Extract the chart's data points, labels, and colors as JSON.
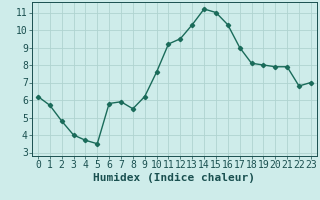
{
  "x": [
    0,
    1,
    2,
    3,
    4,
    5,
    6,
    7,
    8,
    9,
    10,
    11,
    12,
    13,
    14,
    15,
    16,
    17,
    18,
    19,
    20,
    21,
    22,
    23
  ],
  "y": [
    6.2,
    5.7,
    4.8,
    4.0,
    3.7,
    3.5,
    5.8,
    5.9,
    5.5,
    6.2,
    7.6,
    9.2,
    9.5,
    10.3,
    11.2,
    11.0,
    10.3,
    9.0,
    8.1,
    8.0,
    7.9,
    7.9,
    6.8,
    7.0
  ],
  "line_color": "#1a6b5a",
  "marker": "D",
  "marker_size": 2.2,
  "bg_color": "#ceecea",
  "grid_color": "#b0d4d0",
  "tick_color": "#1a5050",
  "xlabel": "Humidex (Indice chaleur)",
  "xlim": [
    -0.5,
    23.5
  ],
  "ylim": [
    2.8,
    11.6
  ],
  "yticks": [
    3,
    4,
    5,
    6,
    7,
    8,
    9,
    10,
    11
  ],
  "xticks": [
    0,
    1,
    2,
    3,
    4,
    5,
    6,
    7,
    8,
    9,
    10,
    11,
    12,
    13,
    14,
    15,
    16,
    17,
    18,
    19,
    20,
    21,
    22,
    23
  ],
  "tick_fontsize": 7,
  "label_fontsize": 8,
  "linewidth": 1.0
}
